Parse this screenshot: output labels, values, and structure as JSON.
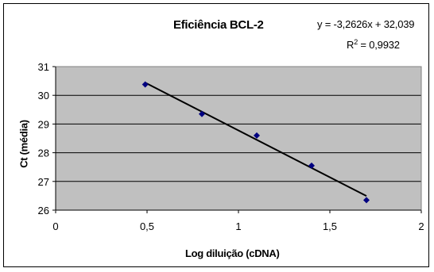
{
  "chart_data": {
    "type": "scatter",
    "title": "Eficiência BCL-2",
    "xlabel": "Log diluição (cDNA)",
    "ylabel": "Ct (média)",
    "xlim": [
      0,
      2
    ],
    "ylim": [
      26,
      31
    ],
    "x_ticks": [
      "0",
      "0,5",
      "1",
      "1,5",
      "2"
    ],
    "y_ticks": [
      "26",
      "27",
      "28",
      "29",
      "30",
      "31"
    ],
    "grid": "horizontal",
    "plot_background": "#c0c0c0",
    "marker_color": "#000080",
    "trendline_color": "#000000",
    "points": [
      {
        "x": 0.49,
        "y": 30.38
      },
      {
        "x": 0.8,
        "y": 29.35
      },
      {
        "x": 1.1,
        "y": 28.6
      },
      {
        "x": 1.4,
        "y": 27.55
      },
      {
        "x": 1.7,
        "y": 26.35
      }
    ],
    "trendline": {
      "slope": -3.2626,
      "intercept": 32.039,
      "x_range": [
        0.49,
        1.7
      ],
      "equation_label": "y = -3,2626x + 32,039",
      "r2_prefix": "R",
      "r2_exponent": "2",
      "r2_suffix": " = 0,9932"
    }
  }
}
